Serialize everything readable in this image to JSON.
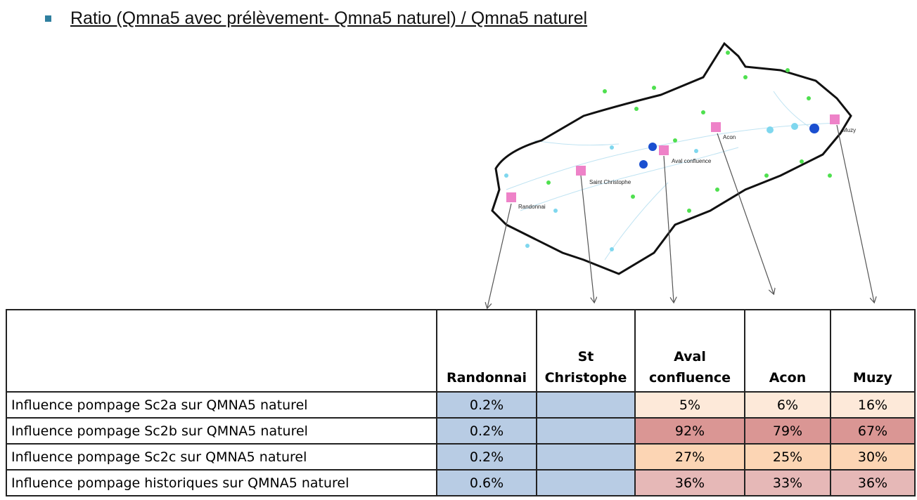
{
  "header": {
    "title": "Ratio  (Qmna5  avec prélèvement- Qmna5 naturel) / Qmna5 naturel"
  },
  "map": {
    "labels": [
      "Randonnai",
      "Saint Christophe",
      "Aval confluence",
      "Acon",
      "Muzy"
    ]
  },
  "table": {
    "columns": [
      "Randonnai",
      "St Christophe",
      "Aval confluence",
      "Acon",
      "Muzy"
    ],
    "rows": [
      [
        "Influence pompage Sc2a sur QMNA5 naturel",
        "0.2%",
        null,
        "5%",
        "6%",
        "16%"
      ],
      [
        "Influence pompage Sc2b sur QMNA5  naturel",
        "0.2%",
        null,
        "92%",
        "79%",
        "67%"
      ],
      [
        "Influence pompage Sc2c sur QMNA5  naturel",
        "0.2%",
        null,
        "27%",
        "25%",
        "30%"
      ],
      [
        "Influence pompage historiques sur QMNA5  naturel",
        "0.6%",
        null,
        "36%",
        "33%",
        "36%"
      ]
    ]
  }
}
